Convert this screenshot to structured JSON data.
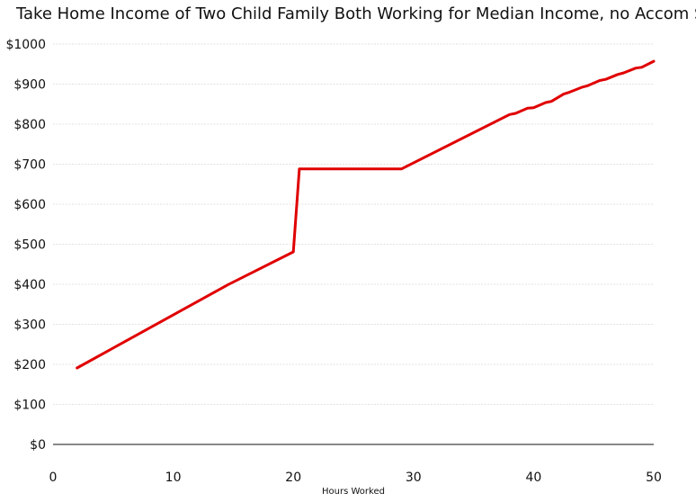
{
  "chart_data": {
    "type": "line",
    "title": "Take Home Income of Two Child Family Both Working for Median Income, no Accom Sup",
    "xlabel": "Hours Worked",
    "ylabel": "",
    "xlim": [
      0,
      50
    ],
    "ylim": [
      0,
      1000
    ],
    "x_ticks": [
      0,
      10,
      20,
      30,
      40,
      50
    ],
    "x_tick_labels": [
      "0",
      "10",
      "20",
      "30",
      "40",
      "50"
    ],
    "y_ticks": [
      0,
      100,
      200,
      300,
      400,
      500,
      600,
      700,
      800,
      900,
      1000
    ],
    "y_tick_labels": [
      "$0",
      "$100",
      "$200",
      "$300",
      "$400",
      "$500",
      "$600",
      "$700",
      "$800",
      "$900",
      "$1000"
    ],
    "grid": "horizontal",
    "series": [
      {
        "color": "#e00000",
        "x": [
          2,
          14.5,
          20,
          20.5,
          29,
          38,
          38.5,
          39.5,
          40,
          41,
          41.5,
          42.5,
          43,
          44,
          44.5,
          45.5,
          46,
          47,
          47.5,
          48.5,
          49,
          50
        ],
        "y": [
          191,
          398,
          481,
          688,
          688,
          824,
          827,
          840,
          841,
          854,
          857,
          875,
          880,
          892,
          896,
          909,
          912,
          924,
          928,
          940,
          942,
          957
        ]
      }
    ]
  }
}
